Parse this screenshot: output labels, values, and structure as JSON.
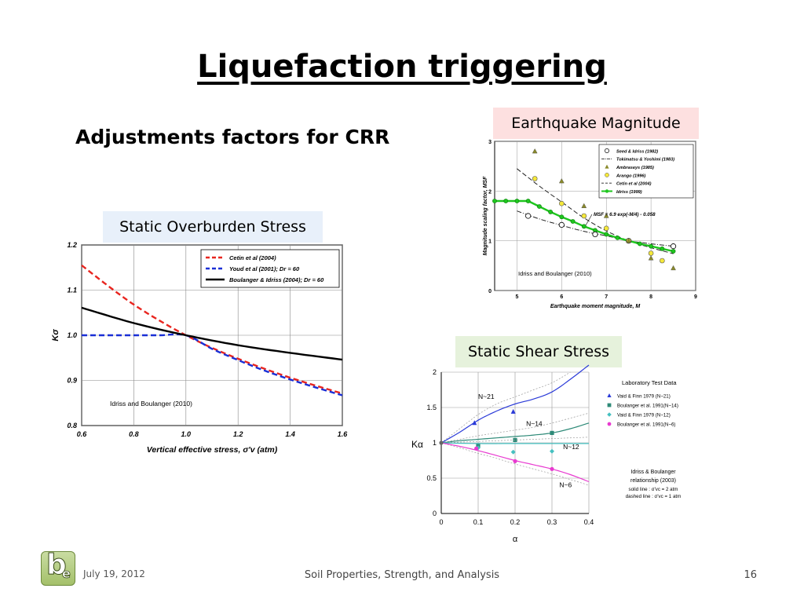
{
  "slide": {
    "title": "Liquefaction triggering",
    "subtitle": "Adjustments factors for CRR",
    "tags": {
      "magnitude": "Earthquake Magnitude",
      "overburden": "Static Overburden Stress",
      "shear": "Static Shear Stress"
    }
  },
  "footer": {
    "date": "July 19, 2012",
    "course": "Soil Properties, Strength, and Analysis",
    "page": "16"
  },
  "logo": {
    "letters_b": "b",
    "letters_e": "e"
  },
  "chart_data": [
    {
      "id": "overburden",
      "type": "line",
      "xlabel": "Vertical effective stress, σ'v (atm)",
      "ylabel": "Kσ",
      "xlim": [
        0.6,
        1.6
      ],
      "ylim": [
        0.8,
        1.2
      ],
      "xticks": [
        "0.6",
        "0.8",
        "1.0",
        "1.2",
        "1.4",
        "1.6"
      ],
      "yticks": [
        "0.8",
        "0.9",
        "1.0",
        "1.1",
        "1.2"
      ],
      "grid": true,
      "legend_position": "top-right",
      "annotation": "Idriss and Boulanger (2010)",
      "series": [
        {
          "name": "Cetin et al (2004)",
          "color": "#e8251f",
          "dash": "dashed",
          "points": [
            [
              0.6,
              1.155
            ],
            [
              0.7,
              1.11
            ],
            [
              0.8,
              1.068
            ],
            [
              0.9,
              1.032
            ],
            [
              1.0,
              1.0
            ],
            [
              1.1,
              0.972
            ],
            [
              1.2,
              0.948
            ],
            [
              1.3,
              0.926
            ],
            [
              1.4,
              0.906
            ],
            [
              1.5,
              0.888
            ],
            [
              1.6,
              0.871
            ]
          ]
        },
        {
          "name": "Youd et al (2001); Dr = 60",
          "color": "#1a2fd6",
          "dash": "dashed",
          "points": [
            [
              0.6,
              1.0
            ],
            [
              0.7,
              1.0
            ],
            [
              0.8,
              1.0
            ],
            [
              0.9,
              1.0
            ],
            [
              1.0,
              1.0
            ],
            [
              1.1,
              0.97
            ],
            [
              1.2,
              0.945
            ],
            [
              1.3,
              0.922
            ],
            [
              1.4,
              0.902
            ],
            [
              1.5,
              0.884
            ],
            [
              1.6,
              0.867
            ]
          ]
        },
        {
          "name": "Boulanger & Idriss (2004); Dr = 60",
          "color": "#000000",
          "dash": "solid",
          "points": [
            [
              0.6,
              1.061
            ],
            [
              0.8,
              1.027
            ],
            [
              1.0,
              1.0
            ],
            [
              1.2,
              0.978
            ],
            [
              1.4,
              0.961
            ],
            [
              1.6,
              0.946
            ]
          ]
        }
      ]
    },
    {
      "id": "magnitude",
      "type": "line",
      "xlabel": "Earthquake moment magnitude, M",
      "ylabel": "Magnitude scaling factor, MSF",
      "xlim": [
        4.5,
        9
      ],
      "ylim": [
        0,
        3
      ],
      "xticks": [
        "5",
        "6",
        "7",
        "8",
        "9"
      ],
      "yticks": [
        "0",
        "1",
        "2",
        "3"
      ],
      "ytick_prefix_note": "",
      "grid": true,
      "legend_position": "top-right",
      "formula": "MSF = 6.9 exp(-M/4) - 0.058",
      "annotation": "Idriss and Boulanger (2010)",
      "legend": [
        "Seed & Idriss (1982)",
        "Tokimatsu & Yoshimi (1983)",
        "Ambraseys (1985)",
        "Arango (1996)",
        "Cetin et al (2004)",
        "Idriss (1999)"
      ],
      "series": [
        {
          "name": "Seed & Idriss (1982)",
          "marker": "open-circle",
          "points": [
            [
              5.25,
              1.5
            ],
            [
              6.0,
              1.32
            ],
            [
              6.75,
              1.13
            ],
            [
              7.5,
              1.0
            ],
            [
              8.5,
              0.89
            ]
          ]
        },
        {
          "name": "Tokimatsu & Yoshimi (1983)",
          "dash": "dashdot",
          "points": [
            [
              5.0,
              1.6
            ],
            [
              5.5,
              1.44
            ],
            [
              6.0,
              1.31
            ],
            [
              6.5,
              1.19
            ],
            [
              7.0,
              1.1
            ],
            [
              7.5,
              1.0
            ],
            [
              8.0,
              0.94
            ],
            [
              8.5,
              0.89
            ]
          ]
        },
        {
          "name": "Ambraseys (1985)",
          "marker": "triangle",
          "points": [
            [
              5.4,
              2.8
            ],
            [
              6.0,
              2.2
            ],
            [
              6.5,
              1.7
            ],
            [
              7.0,
              1.5
            ],
            [
              7.5,
              1.0
            ],
            [
              8.0,
              0.65
            ],
            [
              8.5,
              0.45
            ]
          ]
        },
        {
          "name": "Arango (1996)",
          "marker": "yellow-circle",
          "points": [
            [
              5.4,
              2.25
            ],
            [
              6.0,
              1.75
            ],
            [
              6.5,
              1.5
            ],
            [
              7.0,
              1.25
            ],
            [
              7.5,
              1.0
            ],
            [
              8.0,
              0.75
            ],
            [
              8.25,
              0.6
            ]
          ]
        },
        {
          "name": "Cetin et al (2004)",
          "dash": "dashed",
          "points": [
            [
              5.0,
              2.45
            ],
            [
              5.5,
              2.1
            ],
            [
              6.0,
              1.78
            ],
            [
              6.5,
              1.46
            ],
            [
              7.0,
              1.2
            ],
            [
              7.5,
              1.0
            ],
            [
              8.0,
              0.86
            ],
            [
              8.5,
              0.74
            ]
          ]
        },
        {
          "name": "Idriss (1999)",
          "marker": "green-dot",
          "color": "#1ec61e",
          "points": [
            [
              4.5,
              1.8
            ],
            [
              4.75,
              1.8
            ],
            [
              5.0,
              1.8
            ],
            [
              5.25,
              1.8
            ],
            [
              5.5,
              1.69
            ],
            [
              5.75,
              1.58
            ],
            [
              6.0,
              1.48
            ],
            [
              6.25,
              1.39
            ],
            [
              6.5,
              1.29
            ],
            [
              6.75,
              1.21
            ],
            [
              7.0,
              1.13
            ],
            [
              7.25,
              1.06
            ],
            [
              7.5,
              1.0
            ],
            [
              7.75,
              0.94
            ],
            [
              8.0,
              0.89
            ],
            [
              8.25,
              0.84
            ],
            [
              8.5,
              0.79
            ]
          ]
        }
      ]
    },
    {
      "id": "shear",
      "type": "line",
      "xlabel": "α",
      "ylabel": "Kα",
      "xlim": [
        0,
        0.4
      ],
      "ylim": [
        0,
        2
      ],
      "xticks": [
        "0",
        "0.1",
        "0.2",
        "0.3",
        "0.4"
      ],
      "yticks": [
        "0",
        "0.5",
        "1",
        "1.5",
        "2"
      ],
      "grid": true,
      "legend_title": "Laboratory Test Data",
      "legend": [
        "Vaid & Finn 1979 (N~21)",
        "Boulanger et al. 1991(N~14)",
        "Vaid & Finn 1979 (N~12)",
        "Boulanger et al. 1991(N~6)"
      ],
      "note_title": "Idriss & Boulanger relationship (2003)",
      "note_lines": [
        "solid line : σ'vc = 2 atm",
        "dashed line : σ'vc = 1 atm"
      ],
      "curve_labels": [
        "N~21",
        "N~14",
        "N~12",
        "N~6"
      ],
      "series": [
        {
          "name": "N~21",
          "color": "#2a3ad8",
          "solid": [
            [
              0,
              1.0
            ],
            [
              0.05,
              1.15
            ],
            [
              0.1,
              1.32
            ],
            [
              0.15,
              1.45
            ],
            [
              0.2,
              1.55
            ],
            [
              0.25,
              1.62
            ],
            [
              0.3,
              1.72
            ],
            [
              0.35,
              1.9
            ],
            [
              0.4,
              2.1
            ]
          ],
          "dashed": [
            [
              0,
              1.0
            ],
            [
              0.05,
              1.2
            ],
            [
              0.1,
              1.4
            ],
            [
              0.15,
              1.55
            ],
            [
              0.2,
              1.65
            ],
            [
              0.25,
              1.75
            ],
            [
              0.3,
              1.85
            ],
            [
              0.35,
              2.0
            ]
          ],
          "markers": [
            [
              0.09,
              1.28
            ],
            [
              0.195,
              1.44
            ]
          ],
          "marker_shape": "triangle"
        },
        {
          "name": "N~14",
          "color": "#2e8a78",
          "solid": [
            [
              0,
              1.0
            ],
            [
              0.05,
              1.03
            ],
            [
              0.1,
              1.05
            ],
            [
              0.15,
              1.07
            ],
            [
              0.2,
              1.09
            ],
            [
              0.25,
              1.11
            ],
            [
              0.3,
              1.14
            ],
            [
              0.35,
              1.2
            ],
            [
              0.4,
              1.28
            ]
          ],
          "dashed": [
            [
              0,
              1.0
            ],
            [
              0.05,
              1.05
            ],
            [
              0.1,
              1.1
            ],
            [
              0.15,
              1.14
            ],
            [
              0.2,
              1.18
            ],
            [
              0.25,
              1.22
            ],
            [
              0.3,
              1.28
            ],
            [
              0.35,
              1.35
            ],
            [
              0.4,
              1.42
            ]
          ],
          "markers": [
            [
              0.1,
              0.96
            ],
            [
              0.2,
              1.04
            ],
            [
              0.3,
              1.14
            ]
          ],
          "marker_shape": "square"
        },
        {
          "name": "N~12",
          "color": "#45c0c0",
          "solid": [
            [
              0,
              1.0
            ],
            [
              0.1,
              0.99
            ],
            [
              0.2,
              0.99
            ],
            [
              0.3,
              0.99
            ],
            [
              0.4,
              0.99
            ]
          ],
          "dashed": [
            [
              0,
              1.0
            ],
            [
              0.1,
              1.02
            ],
            [
              0.2,
              1.04
            ],
            [
              0.3,
              1.06
            ],
            [
              0.4,
              1.08
            ]
          ],
          "markers": [
            [
              0.1,
              0.93
            ],
            [
              0.195,
              0.87
            ],
            [
              0.3,
              0.88
            ]
          ],
          "marker_shape": "diamond"
        },
        {
          "name": "N~6",
          "color": "#e83ad0",
          "solid": [
            [
              0,
              1.0
            ],
            [
              0.05,
              0.95
            ],
            [
              0.1,
              0.89
            ],
            [
              0.15,
              0.82
            ],
            [
              0.2,
              0.75
            ],
            [
              0.25,
              0.69
            ],
            [
              0.3,
              0.63
            ],
            [
              0.35,
              0.55
            ],
            [
              0.4,
              0.45
            ]
          ],
          "dashed": [
            [
              0,
              1.0
            ],
            [
              0.05,
              0.93
            ],
            [
              0.1,
              0.85
            ],
            [
              0.15,
              0.78
            ],
            [
              0.2,
              0.7
            ],
            [
              0.25,
              0.63
            ],
            [
              0.3,
              0.56
            ],
            [
              0.35,
              0.48
            ],
            [
              0.4,
              0.4
            ]
          ],
          "markers": [
            [
              0.095,
              0.92
            ],
            [
              0.2,
              0.74
            ],
            [
              0.3,
              0.63
            ]
          ],
          "marker_shape": "circle"
        }
      ]
    }
  ]
}
